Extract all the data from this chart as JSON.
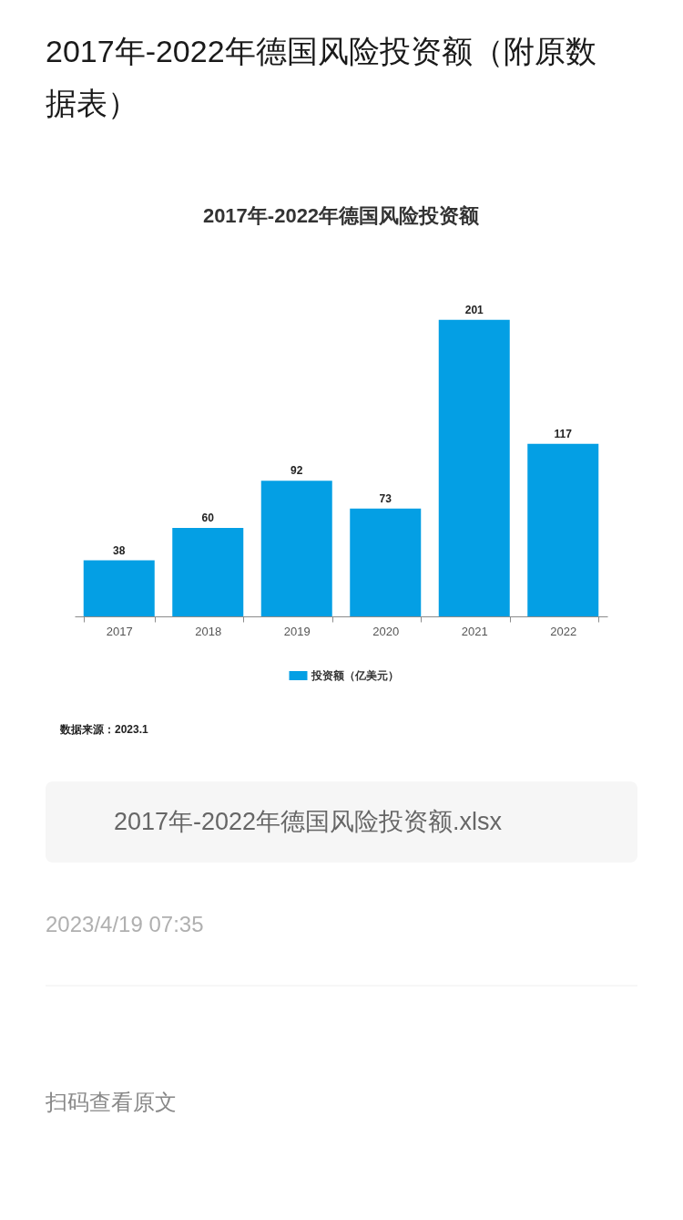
{
  "chart_data": {
    "type": "bar",
    "title": "2017年-2022年德国风险投资额（附原数据表）",
    "subtitle": "2017年-2022年德国风险投资额",
    "categories": [
      "2017",
      "2018",
      "2019",
      "2020",
      "2021",
      "2022"
    ],
    "series": [
      {
        "name": "投资额（亿美元）",
        "color": "#049fe4",
        "values": [
          38,
          60,
          92,
          73,
          201,
          117
        ]
      }
    ],
    "data_labels": true,
    "legend": "bottom",
    "tick_labels": "x",
    "annotations": [
      "数据来源：2023.1",
      "2017年-2022年德国风险投资额.xlsx",
      "2023/4/19 07:35",
      "扫码查看原文"
    ]
  }
}
